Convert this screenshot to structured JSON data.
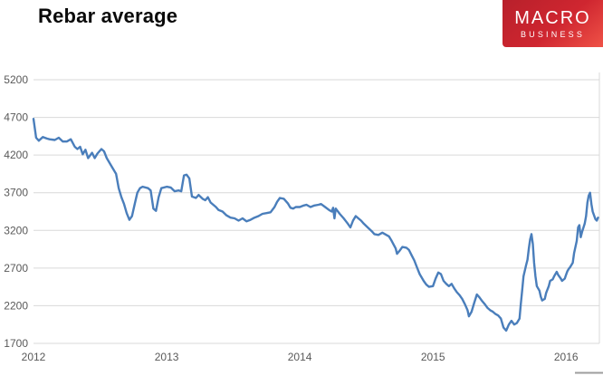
{
  "header": {
    "title": "Rebar average"
  },
  "logo": {
    "line1": "MACRO",
    "line2": "BUSINESS",
    "bg_color": "#cf2630"
  },
  "chart_data": {
    "type": "line",
    "title": "Rebar average",
    "xlabel": "",
    "ylabel": "",
    "legend": "none",
    "grid": "horizontal",
    "grid_color": "#d9d9d9",
    "tick_color": "#595959",
    "xlim": [
      2012.0,
      2016.25
    ],
    "ylim": [
      1700,
      5200
    ],
    "x_ticks": [
      "2012",
      "2013",
      "2014",
      "2015",
      "2016"
    ],
    "y_ticks": [
      5200,
      4700,
      4200,
      3700,
      3200,
      2700,
      2200,
      1700
    ],
    "series": [
      {
        "name": "Rebar average",
        "color": "#4a7ebb",
        "points": [
          [
            2012.0,
            4680
          ],
          [
            2012.02,
            4430
          ],
          [
            2012.04,
            4390
          ],
          [
            2012.07,
            4440
          ],
          [
            2012.1,
            4420
          ],
          [
            2012.12,
            4410
          ],
          [
            2012.16,
            4400
          ],
          [
            2012.19,
            4430
          ],
          [
            2012.22,
            4380
          ],
          [
            2012.25,
            4380
          ],
          [
            2012.28,
            4410
          ],
          [
            2012.31,
            4310
          ],
          [
            2012.33,
            4280
          ],
          [
            2012.35,
            4310
          ],
          [
            2012.37,
            4210
          ],
          [
            2012.39,
            4270
          ],
          [
            2012.41,
            4160
          ],
          [
            2012.44,
            4230
          ],
          [
            2012.46,
            4160
          ],
          [
            2012.48,
            4220
          ],
          [
            2012.51,
            4280
          ],
          [
            2012.53,
            4250
          ],
          [
            2012.55,
            4160
          ],
          [
            2012.58,
            4070
          ],
          [
            2012.6,
            4010
          ],
          [
            2012.62,
            3950
          ],
          [
            2012.64,
            3760
          ],
          [
            2012.66,
            3640
          ],
          [
            2012.68,
            3550
          ],
          [
            2012.7,
            3430
          ],
          [
            2012.72,
            3340
          ],
          [
            2012.74,
            3390
          ],
          [
            2012.76,
            3550
          ],
          [
            2012.78,
            3700
          ],
          [
            2012.8,
            3760
          ],
          [
            2012.82,
            3780
          ],
          [
            2012.86,
            3760
          ],
          [
            2012.88,
            3730
          ],
          [
            2012.9,
            3490
          ],
          [
            2012.92,
            3460
          ],
          [
            2012.94,
            3640
          ],
          [
            2012.96,
            3760
          ],
          [
            2013.0,
            3780
          ],
          [
            2013.03,
            3770
          ],
          [
            2013.06,
            3720
          ],
          [
            2013.09,
            3730
          ],
          [
            2013.11,
            3720
          ],
          [
            2013.13,
            3930
          ],
          [
            2013.15,
            3940
          ],
          [
            2013.17,
            3890
          ],
          [
            2013.19,
            3650
          ],
          [
            2013.22,
            3630
          ],
          [
            2013.24,
            3670
          ],
          [
            2013.27,
            3620
          ],
          [
            2013.29,
            3600
          ],
          [
            2013.31,
            3640
          ],
          [
            2013.33,
            3570
          ],
          [
            2013.37,
            3510
          ],
          [
            2013.39,
            3470
          ],
          [
            2013.42,
            3450
          ],
          [
            2013.45,
            3400
          ],
          [
            2013.48,
            3370
          ],
          [
            2013.51,
            3360
          ],
          [
            2013.54,
            3330
          ],
          [
            2013.57,
            3360
          ],
          [
            2013.6,
            3320
          ],
          [
            2013.63,
            3340
          ],
          [
            2013.66,
            3370
          ],
          [
            2013.69,
            3390
          ],
          [
            2013.72,
            3420
          ],
          [
            2013.75,
            3430
          ],
          [
            2013.78,
            3440
          ],
          [
            2013.81,
            3510
          ],
          [
            2013.83,
            3580
          ],
          [
            2013.85,
            3630
          ],
          [
            2013.88,
            3620
          ],
          [
            2013.91,
            3560
          ],
          [
            2013.93,
            3500
          ],
          [
            2013.95,
            3490
          ],
          [
            2013.97,
            3510
          ],
          [
            2014.0,
            3510
          ],
          [
            2014.03,
            3530
          ],
          [
            2014.05,
            3540
          ],
          [
            2014.08,
            3510
          ],
          [
            2014.11,
            3530
          ],
          [
            2014.14,
            3540
          ],
          [
            2014.16,
            3550
          ],
          [
            2014.19,
            3510
          ],
          [
            2014.22,
            3470
          ],
          [
            2014.24,
            3450
          ],
          [
            2014.25,
            3500
          ],
          [
            2014.26,
            3360
          ],
          [
            2014.27,
            3490
          ],
          [
            2014.3,
            3420
          ],
          [
            2014.33,
            3360
          ],
          [
            2014.36,
            3290
          ],
          [
            2014.38,
            3240
          ],
          [
            2014.4,
            3330
          ],
          [
            2014.42,
            3390
          ],
          [
            2014.44,
            3360
          ],
          [
            2014.46,
            3330
          ],
          [
            2014.48,
            3290
          ],
          [
            2014.51,
            3240
          ],
          [
            2014.54,
            3190
          ],
          [
            2014.56,
            3150
          ],
          [
            2014.59,
            3140
          ],
          [
            2014.62,
            3170
          ],
          [
            2014.64,
            3150
          ],
          [
            2014.67,
            3120
          ],
          [
            2014.69,
            3060
          ],
          [
            2014.72,
            2960
          ],
          [
            2014.73,
            2890
          ],
          [
            2014.75,
            2930
          ],
          [
            2014.77,
            2980
          ],
          [
            2014.8,
            2970
          ],
          [
            2014.82,
            2940
          ],
          [
            2014.84,
            2870
          ],
          [
            2014.86,
            2800
          ],
          [
            2014.88,
            2710
          ],
          [
            2014.9,
            2620
          ],
          [
            2014.93,
            2530
          ],
          [
            2014.95,
            2480
          ],
          [
            2014.97,
            2450
          ],
          [
            2015.0,
            2460
          ],
          [
            2015.02,
            2560
          ],
          [
            2015.04,
            2640
          ],
          [
            2015.06,
            2620
          ],
          [
            2015.08,
            2530
          ],
          [
            2015.1,
            2490
          ],
          [
            2015.12,
            2460
          ],
          [
            2015.14,
            2490
          ],
          [
            2015.16,
            2430
          ],
          [
            2015.18,
            2380
          ],
          [
            2015.2,
            2340
          ],
          [
            2015.22,
            2290
          ],
          [
            2015.24,
            2220
          ],
          [
            2015.26,
            2140
          ],
          [
            2015.27,
            2060
          ],
          [
            2015.29,
            2120
          ],
          [
            2015.31,
            2240
          ],
          [
            2015.33,
            2350
          ],
          [
            2015.35,
            2310
          ],
          [
            2015.37,
            2260
          ],
          [
            2015.39,
            2220
          ],
          [
            2015.41,
            2170
          ],
          [
            2015.43,
            2140
          ],
          [
            2015.45,
            2120
          ],
          [
            2015.47,
            2090
          ],
          [
            2015.49,
            2070
          ],
          [
            2015.51,
            2030
          ],
          [
            2015.53,
            1910
          ],
          [
            2015.55,
            1870
          ],
          [
            2015.57,
            1950
          ],
          [
            2015.59,
            2000
          ],
          [
            2015.61,
            1950
          ],
          [
            2015.63,
            1970
          ],
          [
            2015.65,
            2030
          ],
          [
            2015.66,
            2220
          ],
          [
            2015.67,
            2400
          ],
          [
            2015.68,
            2590
          ],
          [
            2015.7,
            2740
          ],
          [
            2015.71,
            2810
          ],
          [
            2015.72,
            2960
          ],
          [
            2015.73,
            3080
          ],
          [
            2015.74,
            3150
          ],
          [
            2015.75,
            3020
          ],
          [
            2015.76,
            2770
          ],
          [
            2015.77,
            2590
          ],
          [
            2015.78,
            2460
          ],
          [
            2015.8,
            2400
          ],
          [
            2015.81,
            2320
          ],
          [
            2015.82,
            2270
          ],
          [
            2015.84,
            2290
          ],
          [
            2015.85,
            2370
          ],
          [
            2015.87,
            2460
          ],
          [
            2015.88,
            2530
          ],
          [
            2015.9,
            2550
          ],
          [
            2015.91,
            2590
          ],
          [
            2015.93,
            2650
          ],
          [
            2015.94,
            2610
          ],
          [
            2015.96,
            2560
          ],
          [
            2015.97,
            2530
          ],
          [
            2015.99,
            2560
          ],
          [
            2016.0,
            2610
          ],
          [
            2016.01,
            2660
          ],
          [
            2016.02,
            2690
          ],
          [
            2016.03,
            2710
          ],
          [
            2016.05,
            2770
          ],
          [
            2016.06,
            2900
          ],
          [
            2016.08,
            3060
          ],
          [
            2016.09,
            3240
          ],
          [
            2016.1,
            3270
          ],
          [
            2016.11,
            3110
          ],
          [
            2016.12,
            3180
          ],
          [
            2016.14,
            3290
          ],
          [
            2016.15,
            3390
          ],
          [
            2016.16,
            3570
          ],
          [
            2016.17,
            3660
          ],
          [
            2016.18,
            3700
          ],
          [
            2016.19,
            3550
          ],
          [
            2016.2,
            3450
          ],
          [
            2016.22,
            3350
          ],
          [
            2016.23,
            3330
          ],
          [
            2016.24,
            3370
          ]
        ]
      }
    ]
  }
}
